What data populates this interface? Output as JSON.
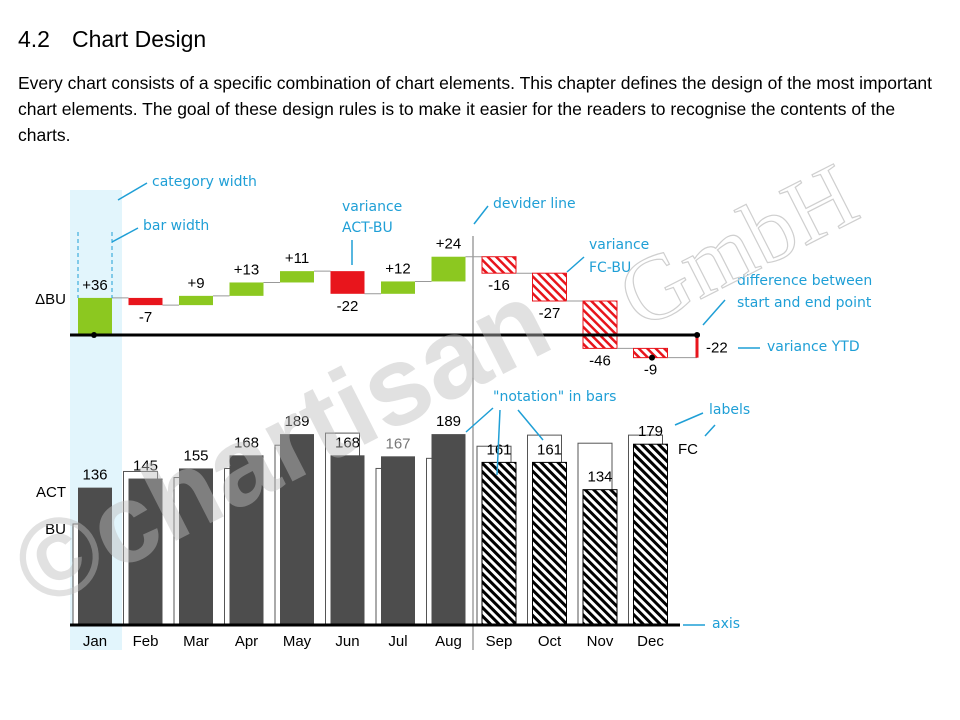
{
  "header": {
    "number": "4.2",
    "title": "Chart Design"
  },
  "paragraph": "Every chart consists of a specific combination of chart elements. This chapter defines the design of the most important chart elements. The goal of these design rules is to make it easier for the readers to recognise the contents of the charts.",
  "watermark": [
    "©chartisan",
    "GmbH"
  ],
  "chart_data": {
    "type": "bar",
    "categories": [
      "Jan",
      "Feb",
      "Mar",
      "Apr",
      "May",
      "Jun",
      "Jul",
      "Aug",
      "Sep",
      "Oct",
      "Nov",
      "Dec"
    ],
    "series": [
      {
        "name": "ACT",
        "color": "#4d4d4d",
        "values": [
          136,
          145,
          155,
          168,
          189,
          168,
          167,
          189,
          null,
          null,
          null,
          null
        ]
      },
      {
        "name": "FC",
        "color": "#000000",
        "values": [
          null,
          null,
          null,
          null,
          null,
          null,
          null,
          null,
          161,
          161,
          134,
          179
        ]
      },
      {
        "name": "BU",
        "color": "#ffffff",
        "values": [
          100,
          152,
          146,
          155,
          178,
          190,
          155,
          165,
          177,
          188,
          180,
          188
        ]
      }
    ],
    "variance": {
      "name": "ΔBU",
      "positive_color": "#8cc820",
      "negative_color": "#e8151c",
      "values": [
        36,
        -7,
        9,
        13,
        11,
        -22,
        12,
        24,
        -16,
        -27,
        -46,
        -9
      ],
      "value_labels": [
        "+36",
        "-7",
        "+9",
        "+13",
        "+11",
        "-22",
        "+12",
        "+24",
        "-16",
        "-27",
        "-46",
        "-9"
      ],
      "ytd": -22
    },
    "annotations": {
      "category_width": "category width",
      "bar_width": "bar width",
      "variance_act_bu": [
        "variance",
        "ACT-BU"
      ],
      "divider_line": "devider line",
      "variance_fc_bu": [
        "variance",
        "FC-BU"
      ],
      "difference": [
        "difference between",
        "start and end point"
      ],
      "variance_ytd": "variance YTD",
      "notation": "\"notation\" in bars",
      "labels": "labels",
      "axis": "axis"
    }
  }
}
